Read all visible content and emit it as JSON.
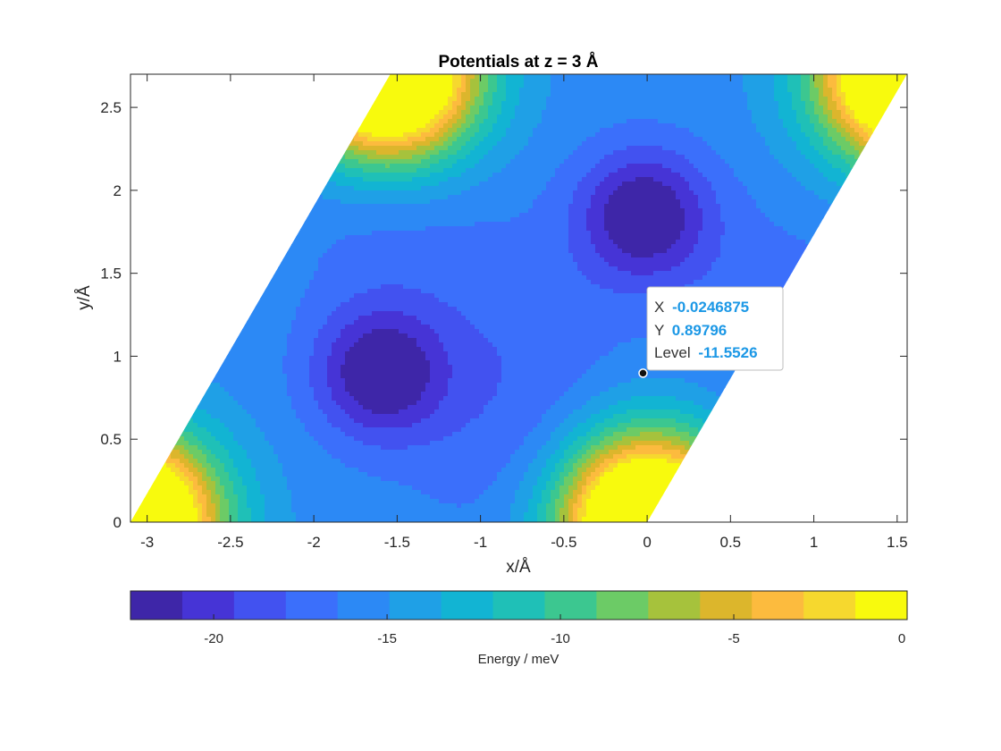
{
  "chart_data": {
    "type": "heatmap",
    "subtype": "filled-contour",
    "title": "Potentials at z = 3 Å",
    "xlabel": "x/Å",
    "ylabel": "y/Å",
    "xlim": [
      -3.1,
      1.56
    ],
    "ylim": [
      0,
      2.7
    ],
    "xticks": [
      -3,
      -2.5,
      -2,
      -1.5,
      -1,
      -0.5,
      0,
      0.5,
      1,
      1.5
    ],
    "xtick_labels": [
      "-3",
      "-2.5",
      "-2",
      "-1.5",
      "-1",
      "-0.5",
      "0",
      "0.5",
      "1",
      "1.5"
    ],
    "yticks": [
      0,
      0.5,
      1,
      1.5,
      2,
      2.5
    ],
    "ytick_labels": [
      "0",
      "0.5",
      "1",
      "1.5",
      "2",
      "2.5"
    ],
    "domain": "parallelogram, bottom edge x from -3.1 to 0, lateral edges with slope 1.732",
    "contour_levels": [
      -22.4,
      -20.9,
      -19.4,
      -17.9,
      -16.4,
      -14.9,
      -13.4,
      -11.9,
      -10.4,
      -8.9,
      -7.4,
      -5.9,
      -4.4,
      -2.9,
      -1.4,
      0
    ],
    "features": [
      {
        "kind": "minimum",
        "x": -0.02,
        "y": 1.85,
        "value": -22
      },
      {
        "kind": "minimum",
        "x": -1.6,
        "y": 0.9,
        "value": -22
      },
      {
        "kind": "maximum",
        "x": 0,
        "y": 0,
        "value": 0
      },
      {
        "kind": "maximum",
        "x": -3.1,
        "y": 0,
        "value": 0
      },
      {
        "kind": "maximum",
        "x": -1.55,
        "y": 2.7,
        "value": 0
      },
      {
        "kind": "maximum",
        "x": 1.56,
        "y": 2.7,
        "value": 0
      }
    ],
    "colormap": "parula",
    "colorbar": {
      "label": "Energy / meV",
      "lim": [
        -22.4,
        0
      ],
      "ticks": [
        -20,
        -15,
        -10,
        -5,
        0
      ],
      "tick_labels": [
        "-20",
        "-15",
        "-10",
        "-5",
        "0"
      ],
      "colors": [
        "#3e26a8",
        "#4634d6",
        "#4252f0",
        "#3b6ffb",
        "#2c89f5",
        "#1fa0e6",
        "#12b4d3",
        "#1fc0b7",
        "#3cc790",
        "#6ccb66",
        "#a6c23c",
        "#dcb62c",
        "#fcbb3e",
        "#f6d82e",
        "#f8fa0d"
      ]
    },
    "datatip": {
      "x_key": "X",
      "x_value": "-0.0246875",
      "y_key": "Y",
      "y_value": "0.89796",
      "level_key": "Level",
      "level_value": "-11.5526",
      "x": -0.0246875,
      "y": 0.89796
    }
  }
}
